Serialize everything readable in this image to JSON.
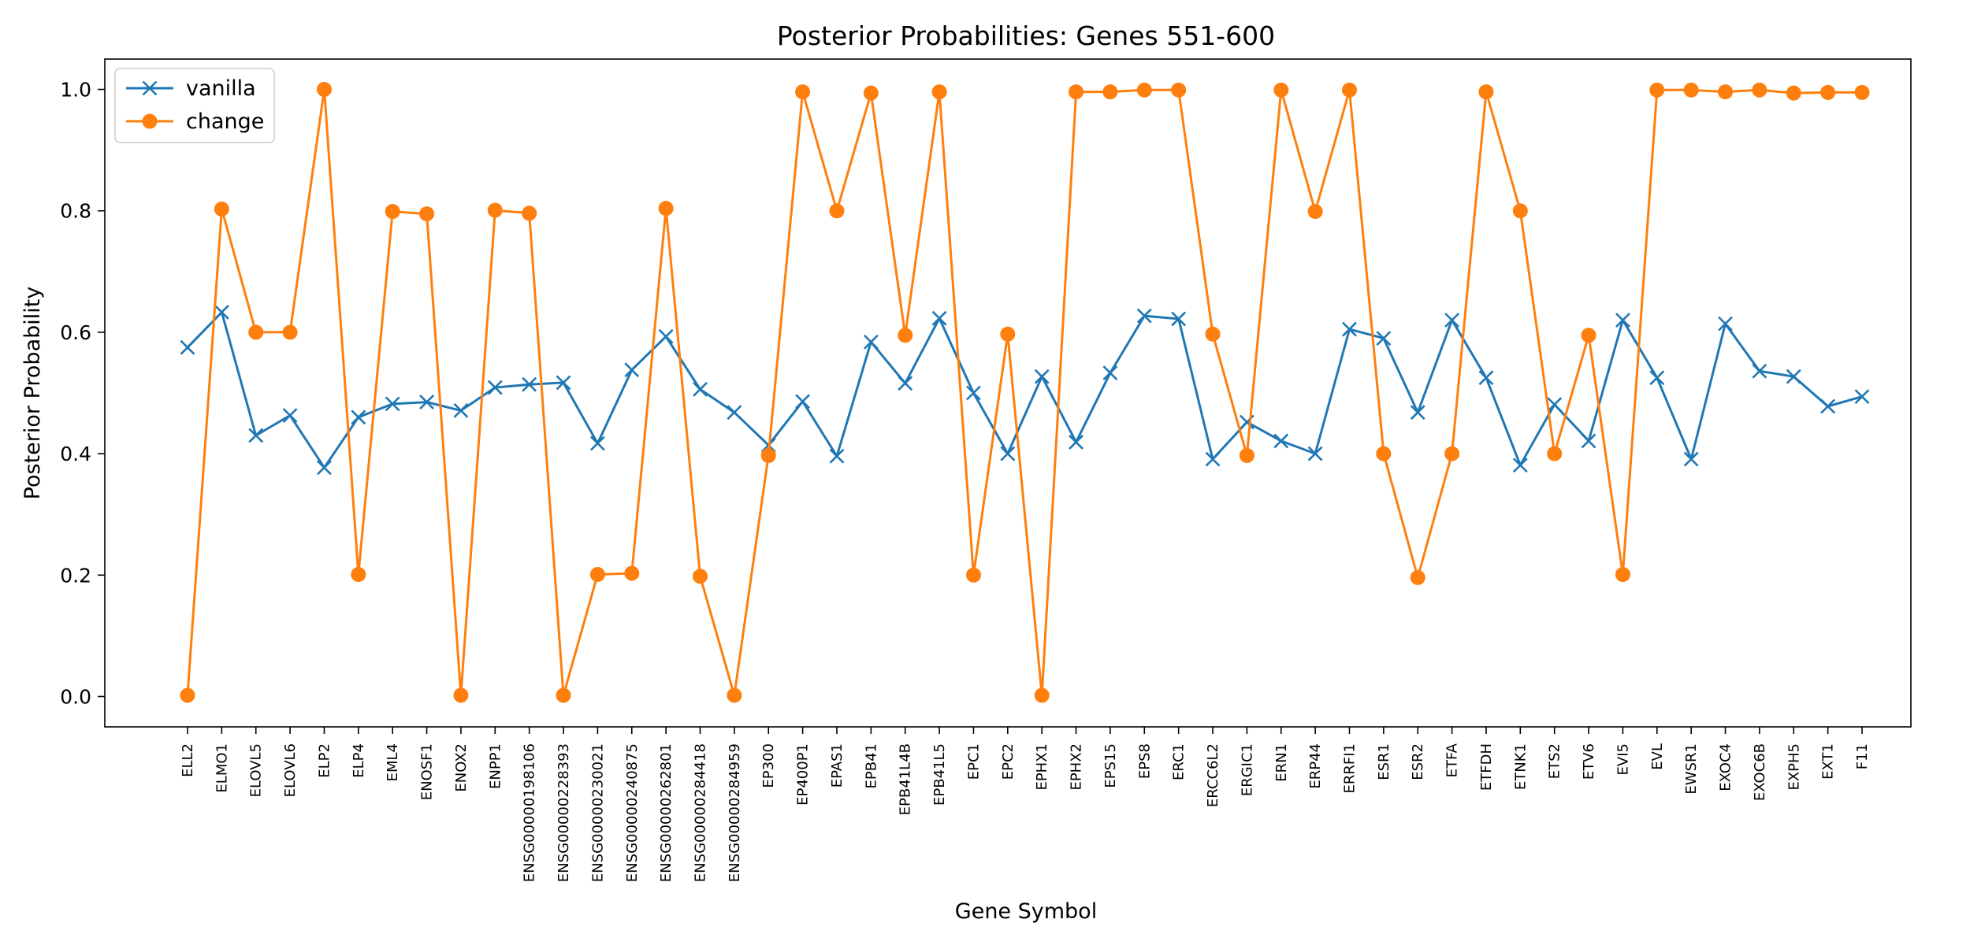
{
  "chart_data": {
    "type": "line",
    "title": "Posterior Probabilities: Genes 551-600",
    "xlabel": "Gene Symbol",
    "ylabel": "Posterior Probability",
    "ylim": [
      -0.05,
      1.05
    ],
    "yticks": [
      "0.0",
      "0.2",
      "0.4",
      "0.6",
      "0.8",
      "1.0"
    ],
    "ytick_values": [
      0.0,
      0.2,
      0.4,
      0.6,
      0.8,
      1.0
    ],
    "grid": false,
    "legend": "top-left",
    "categories": [
      "ELL2",
      "ELMO1",
      "ELOVL5",
      "ELOVL6",
      "ELP2",
      "ELP4",
      "EML4",
      "ENOSF1",
      "ENOX2",
      "ENPP1",
      "ENSG00000198106",
      "ENSG00000228393",
      "ENSG00000230021",
      "ENSG00000240875",
      "ENSG00000262801",
      "ENSG00000284418",
      "ENSG00000284959",
      "EP300",
      "EP400P1",
      "EPAS1",
      "EPB41",
      "EPB41L4B",
      "EPB41L5",
      "EPC1",
      "EPC2",
      "EPHX1",
      "EPHX2",
      "EPS15",
      "EPS8",
      "ERC1",
      "ERCC6L2",
      "ERGIC1",
      "ERN1",
      "ERP44",
      "ERRFI1",
      "ESR1",
      "ESR2",
      "ETFA",
      "ETFDH",
      "ETNK1",
      "ETS2",
      "ETV6",
      "EVI5",
      "EVL",
      "EWSR1",
      "EXOC4",
      "EXOC6B",
      "EXPH5",
      "EXT1",
      "F11"
    ],
    "series": [
      {
        "name": "vanilla",
        "color": "#1f77b4",
        "marker": "x",
        "values": [
          0.575,
          0.633,
          0.43,
          0.463,
          0.377,
          0.46,
          0.482,
          0.485,
          0.471,
          0.509,
          0.514,
          0.517,
          0.417,
          0.538,
          0.593,
          0.506,
          0.468,
          0.414,
          0.486,
          0.396,
          0.584,
          0.516,
          0.623,
          0.5,
          0.4,
          0.527,
          0.419,
          0.533,
          0.627,
          0.622,
          0.391,
          0.452,
          0.421,
          0.4,
          0.605,
          0.59,
          0.468,
          0.62,
          0.525,
          0.381,
          0.481,
          0.421,
          0.62,
          0.525,
          0.391,
          0.614,
          0.536,
          0.527,
          0.478,
          0.494
        ]
      },
      {
        "name": "change",
        "color": "#ff7f0e",
        "marker": "o",
        "values": [
          0.002,
          0.803,
          0.6,
          0.6,
          1.0,
          0.201,
          0.799,
          0.795,
          0.002,
          0.801,
          0.796,
          0.002,
          0.201,
          0.203,
          0.804,
          0.198,
          0.002,
          0.397,
          0.996,
          0.8,
          0.994,
          0.595,
          0.996,
          0.2,
          0.597,
          0.002,
          0.996,
          0.996,
          0.999,
          0.999,
          0.597,
          0.397,
          0.999,
          0.799,
          0.999,
          0.4,
          0.196,
          0.4,
          0.996,
          0.8,
          0.4,
          0.595,
          0.201,
          0.999,
          0.999,
          0.996,
          0.999,
          0.994,
          0.995,
          0.995
        ]
      }
    ]
  }
}
